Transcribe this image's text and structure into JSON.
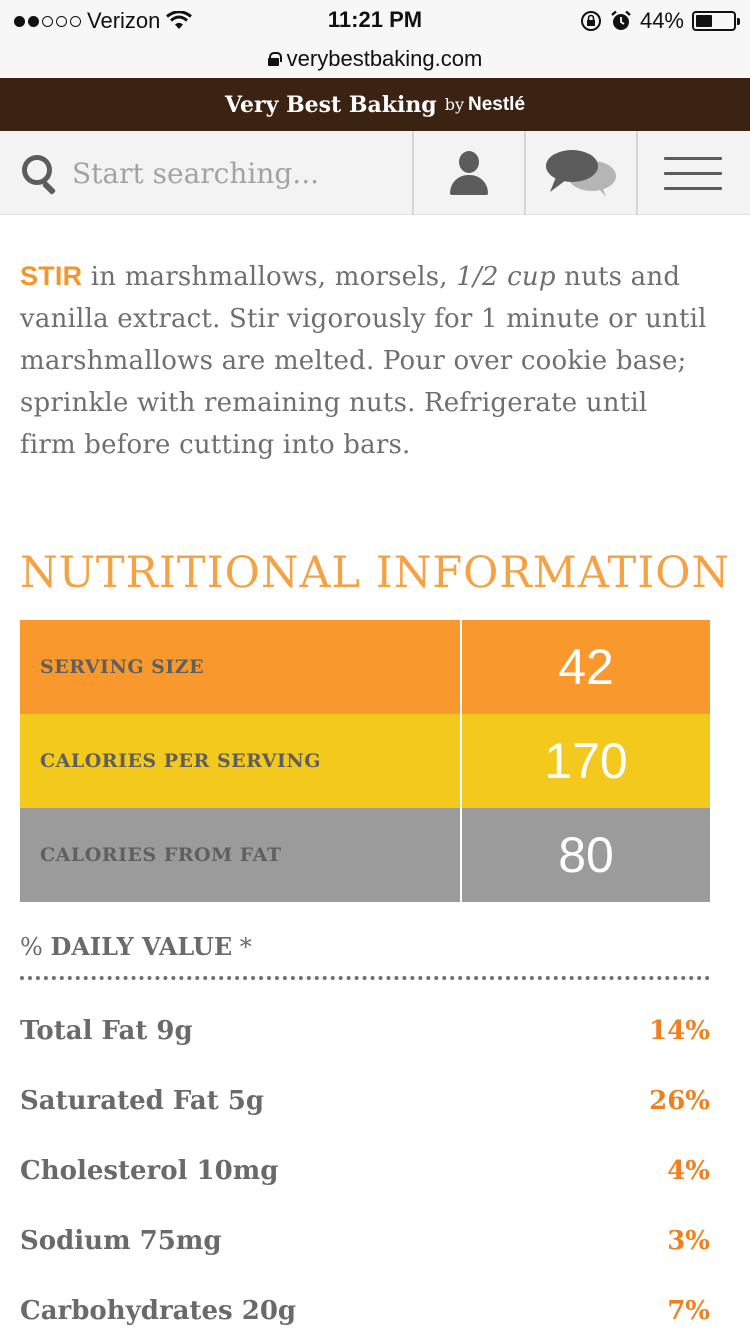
{
  "status_bar": {
    "carrier": "Verizon",
    "time": "11:21 PM",
    "battery_text": "44%",
    "battery_level": 0.44,
    "signal_dots": [
      true,
      true,
      false,
      false,
      false
    ]
  },
  "url_bar": {
    "domain": "verybestbaking.com"
  },
  "brand": {
    "main": "Very Best Baking",
    "by": "by",
    "partner": "Nestlé"
  },
  "search": {
    "placeholder": "Start searching..."
  },
  "recipe_step": {
    "verb": "STIR",
    "text_before": " in marshmallows, morsels, ",
    "italic": "1/2 cup",
    "text_after": " nuts and vanilla extract. Stir vigorously for 1 minute or until marshmallows are melted. Pour over cookie base; sprinkle with remaining nuts. Refrigerate until firm before cutting into bars."
  },
  "nutrition": {
    "title": "NUTRITIONAL INFORMATION",
    "summary": [
      {
        "label": "SERVING SIZE",
        "value": "42",
        "color": "#f9982c"
      },
      {
        "label": "CALORIES PER SERVING",
        "value": "170",
        "color": "#f3c91d"
      },
      {
        "label": "CALORIES FROM FAT",
        "value": "80",
        "color": "#9b9b9b"
      }
    ],
    "daily_value_header": {
      "pct": "%",
      "label": "DAILY VALUE",
      "star": "*"
    },
    "daily_values": [
      {
        "name": "Total Fat 9g",
        "pct": "14%"
      },
      {
        "name": "Saturated Fat 5g",
        "pct": "26%"
      },
      {
        "name": "Cholesterol 10mg",
        "pct": "4%"
      },
      {
        "name": "Sodium 75mg",
        "pct": "3%"
      },
      {
        "name": "Carbohydrates 20g",
        "pct": "7%"
      }
    ]
  },
  "colors": {
    "accent": "#f4962a",
    "brand_bar": "#3b2314",
    "pct_orange": "#f0801f"
  },
  "icons": [
    "search-icon",
    "user-icon",
    "chat-icon",
    "menu-icon",
    "lock-icon",
    "wifi-icon",
    "rotation-lock-icon",
    "alarm-icon",
    "battery-icon"
  ]
}
